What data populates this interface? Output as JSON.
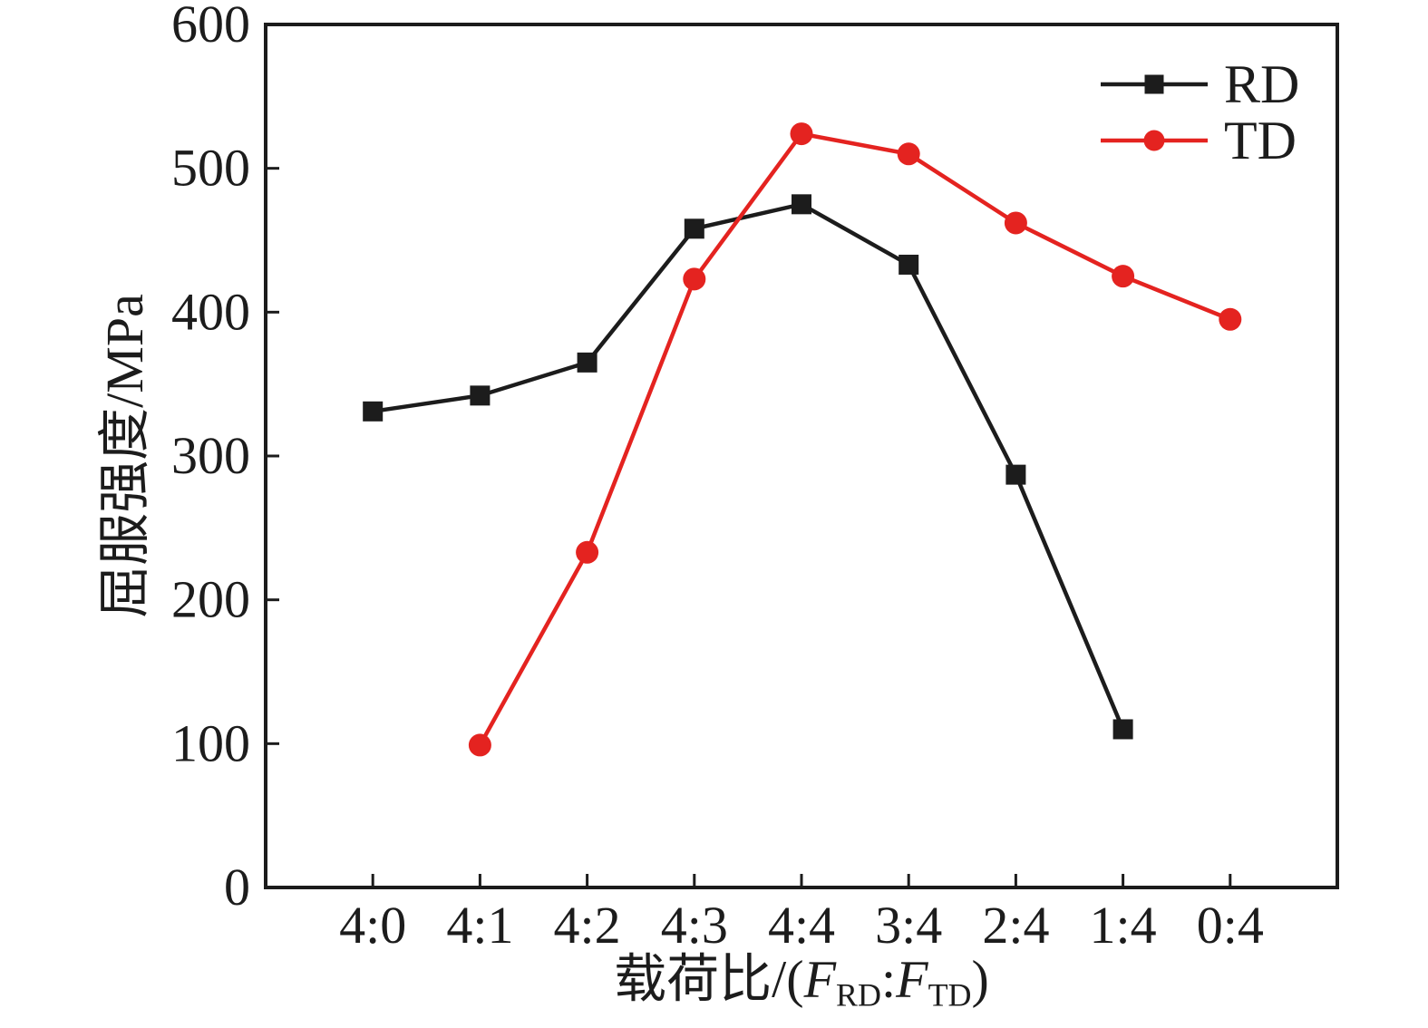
{
  "chart_data": {
    "type": "line",
    "title": "",
    "categories": [
      "4:0",
      "4:1",
      "4:2",
      "4:3",
      "4:4",
      "3:4",
      "2:4",
      "1:4",
      "0:4"
    ],
    "series": [
      {
        "name": "RD",
        "marker": "square",
        "color": "#1c1c1c",
        "values": [
          331,
          342,
          365,
          458,
          475,
          433,
          287,
          110,
          null
        ]
      },
      {
        "name": "TD",
        "marker": "circle",
        "color": "#e42320",
        "values": [
          null,
          99,
          233,
          423,
          524,
          510,
          462,
          425,
          395
        ]
      }
    ],
    "xlabel": "载荷比/(F_RD:F_TD)",
    "xlabel_parts": {
      "prefix": "载荷比/(",
      "f_rd": "F",
      "sub_rd": "RD",
      "colon": ":",
      "f_td": "F",
      "sub_td": "TD",
      "suffix": ")"
    },
    "ylabel": "屈服强度/MPa",
    "ylim": [
      0,
      600
    ],
    "yticks": [
      0,
      100,
      200,
      300,
      400,
      500,
      600
    ],
    "grid": false,
    "legend_position": "top-right"
  },
  "legend": {
    "entries": [
      {
        "label": "RD"
      },
      {
        "label": "TD"
      }
    ]
  },
  "colors": {
    "axis": "#1c1c1c",
    "background": "#ffffff",
    "rd": "#1c1c1c",
    "td": "#e42320"
  }
}
